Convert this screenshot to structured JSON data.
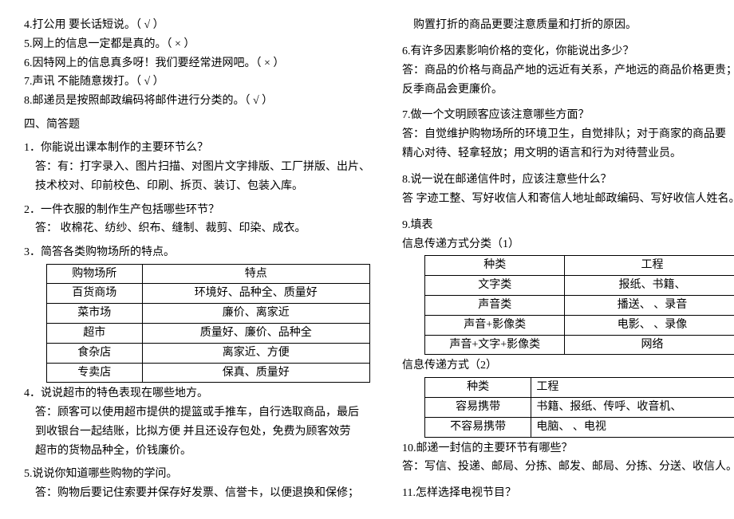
{
  "left": {
    "tf": {
      "q4": "4.打公用    要长话短说。（ √  ）",
      "q5": "5.网上的信息一定都是真的。（  ×  ）",
      "q6": "6.因特网上的信息真多呀！我们要经常进网吧。（    ×  ）",
      "q7": "7.声讯    不能随意拨打。（  √  ）",
      "q8": "8.邮递员是按照邮政编码将邮件进行分类的。（    √  ）"
    },
    "section4_title": "四、简答题",
    "q1": {
      "q": "1．你能说出课本制作的主要环节么？",
      "a1": "答：有：打字录入、图片扫描、对图片文字排版、工厂拼版、出片、",
      "a2": "技术校对、印前校色、印刷、拆页、装订、包装入库。"
    },
    "q2": {
      "q": "2．一件衣服的制作生产包括哪些环节？",
      "a": "答：   收棉花、纺纱、织布、缝制、裁剪、印染、成衣。"
    },
    "q3": {
      "q": "3．简答各类购物场所的特点。",
      "table": {
        "h1": "购物场所",
        "h2": "特点",
        "r1a": "百货商场",
        "r1b": "环境好、品种全、质量好",
        "r2a": "菜市场",
        "r2b": "廉价、离家近",
        "r3a": "超市",
        "r3b": "质量好、廉价、品种全",
        "r4a": "食杂店",
        "r4b": "离家近、方便",
        "r5a": "专卖店",
        "r5b": "保真、质量好"
      }
    },
    "q4blk": {
      "q": "4．说说超市的特色表现在哪些地方。",
      "a1": "答：顾客可以使用超市提供的提篮或手推车，自行选取商品，最后",
      "a2": "到收银台一起结账，比拟方便 并且还设存包处，免费为顾客效劳",
      "a3": "超市的货物品种全，价钱廉价。"
    },
    "q5blk": {
      "q": "5.说说你知道哪些购物的学问。",
      "a": "答：购物后要记住索要并保存好发票、信誉卡，以便退换和保修；"
    }
  },
  "right": {
    "cont": "购置打折的商品更要注意质量和打折的原因。",
    "q6": {
      "q": "6.有许多因素影响价格的变化，你能说出多少？",
      "a1": "答：商品的价格与商品产地的远近有关系，产地远的商品价格更贵；",
      "a2": "    反季商品会更廉价。"
    },
    "q7": {
      "q": "7.做一个文明顾客应该注意哪些方面？",
      "a1": "  答：自觉维护购物场所的环境卫生，自觉排队；对于商家的商品要",
      "a2": "精心对待、轻拿轻放；用文明的语言和行为对待营业员。"
    },
    "q8": {
      "q": "8.说一说在邮递信件时，应该注意些什么？",
      "a": "答  字迹工整、写好收信人和寄信人地址邮政编码、写好收信人姓名。"
    },
    "q9": {
      "q": "9.填表",
      "sub1": "信息传递方式分类（1）",
      "t1": {
        "h1": "种类",
        "h2": "工程",
        "r1a": "文字类",
        "r1b": "报纸、书籍、",
        "r2a": "声音类",
        "r2b": "播送、    、录音",
        "r3a": "声音+影像类",
        "r3b": "电影、    、录像",
        "r4a": "声音+文字+影像类",
        "r4b": "网络"
      },
      "sub2": "信息传递方式（2）",
      "t2": {
        "h1": "种类",
        "h2": "工程",
        "r1a": "容易携带",
        "r1b": "书籍、报纸、传呼、收音机、",
        "r2a": "不容易携带",
        "r2b": "电脑、    、电视"
      }
    },
    "q10": {
      "q": "10.邮递一封信的主要环节有哪些？",
      "a": "答：写信、投递、邮局、分拣、邮发、邮局、分拣、分送、收信人。"
    },
    "q11": "11.怎样选择电视节目？"
  }
}
